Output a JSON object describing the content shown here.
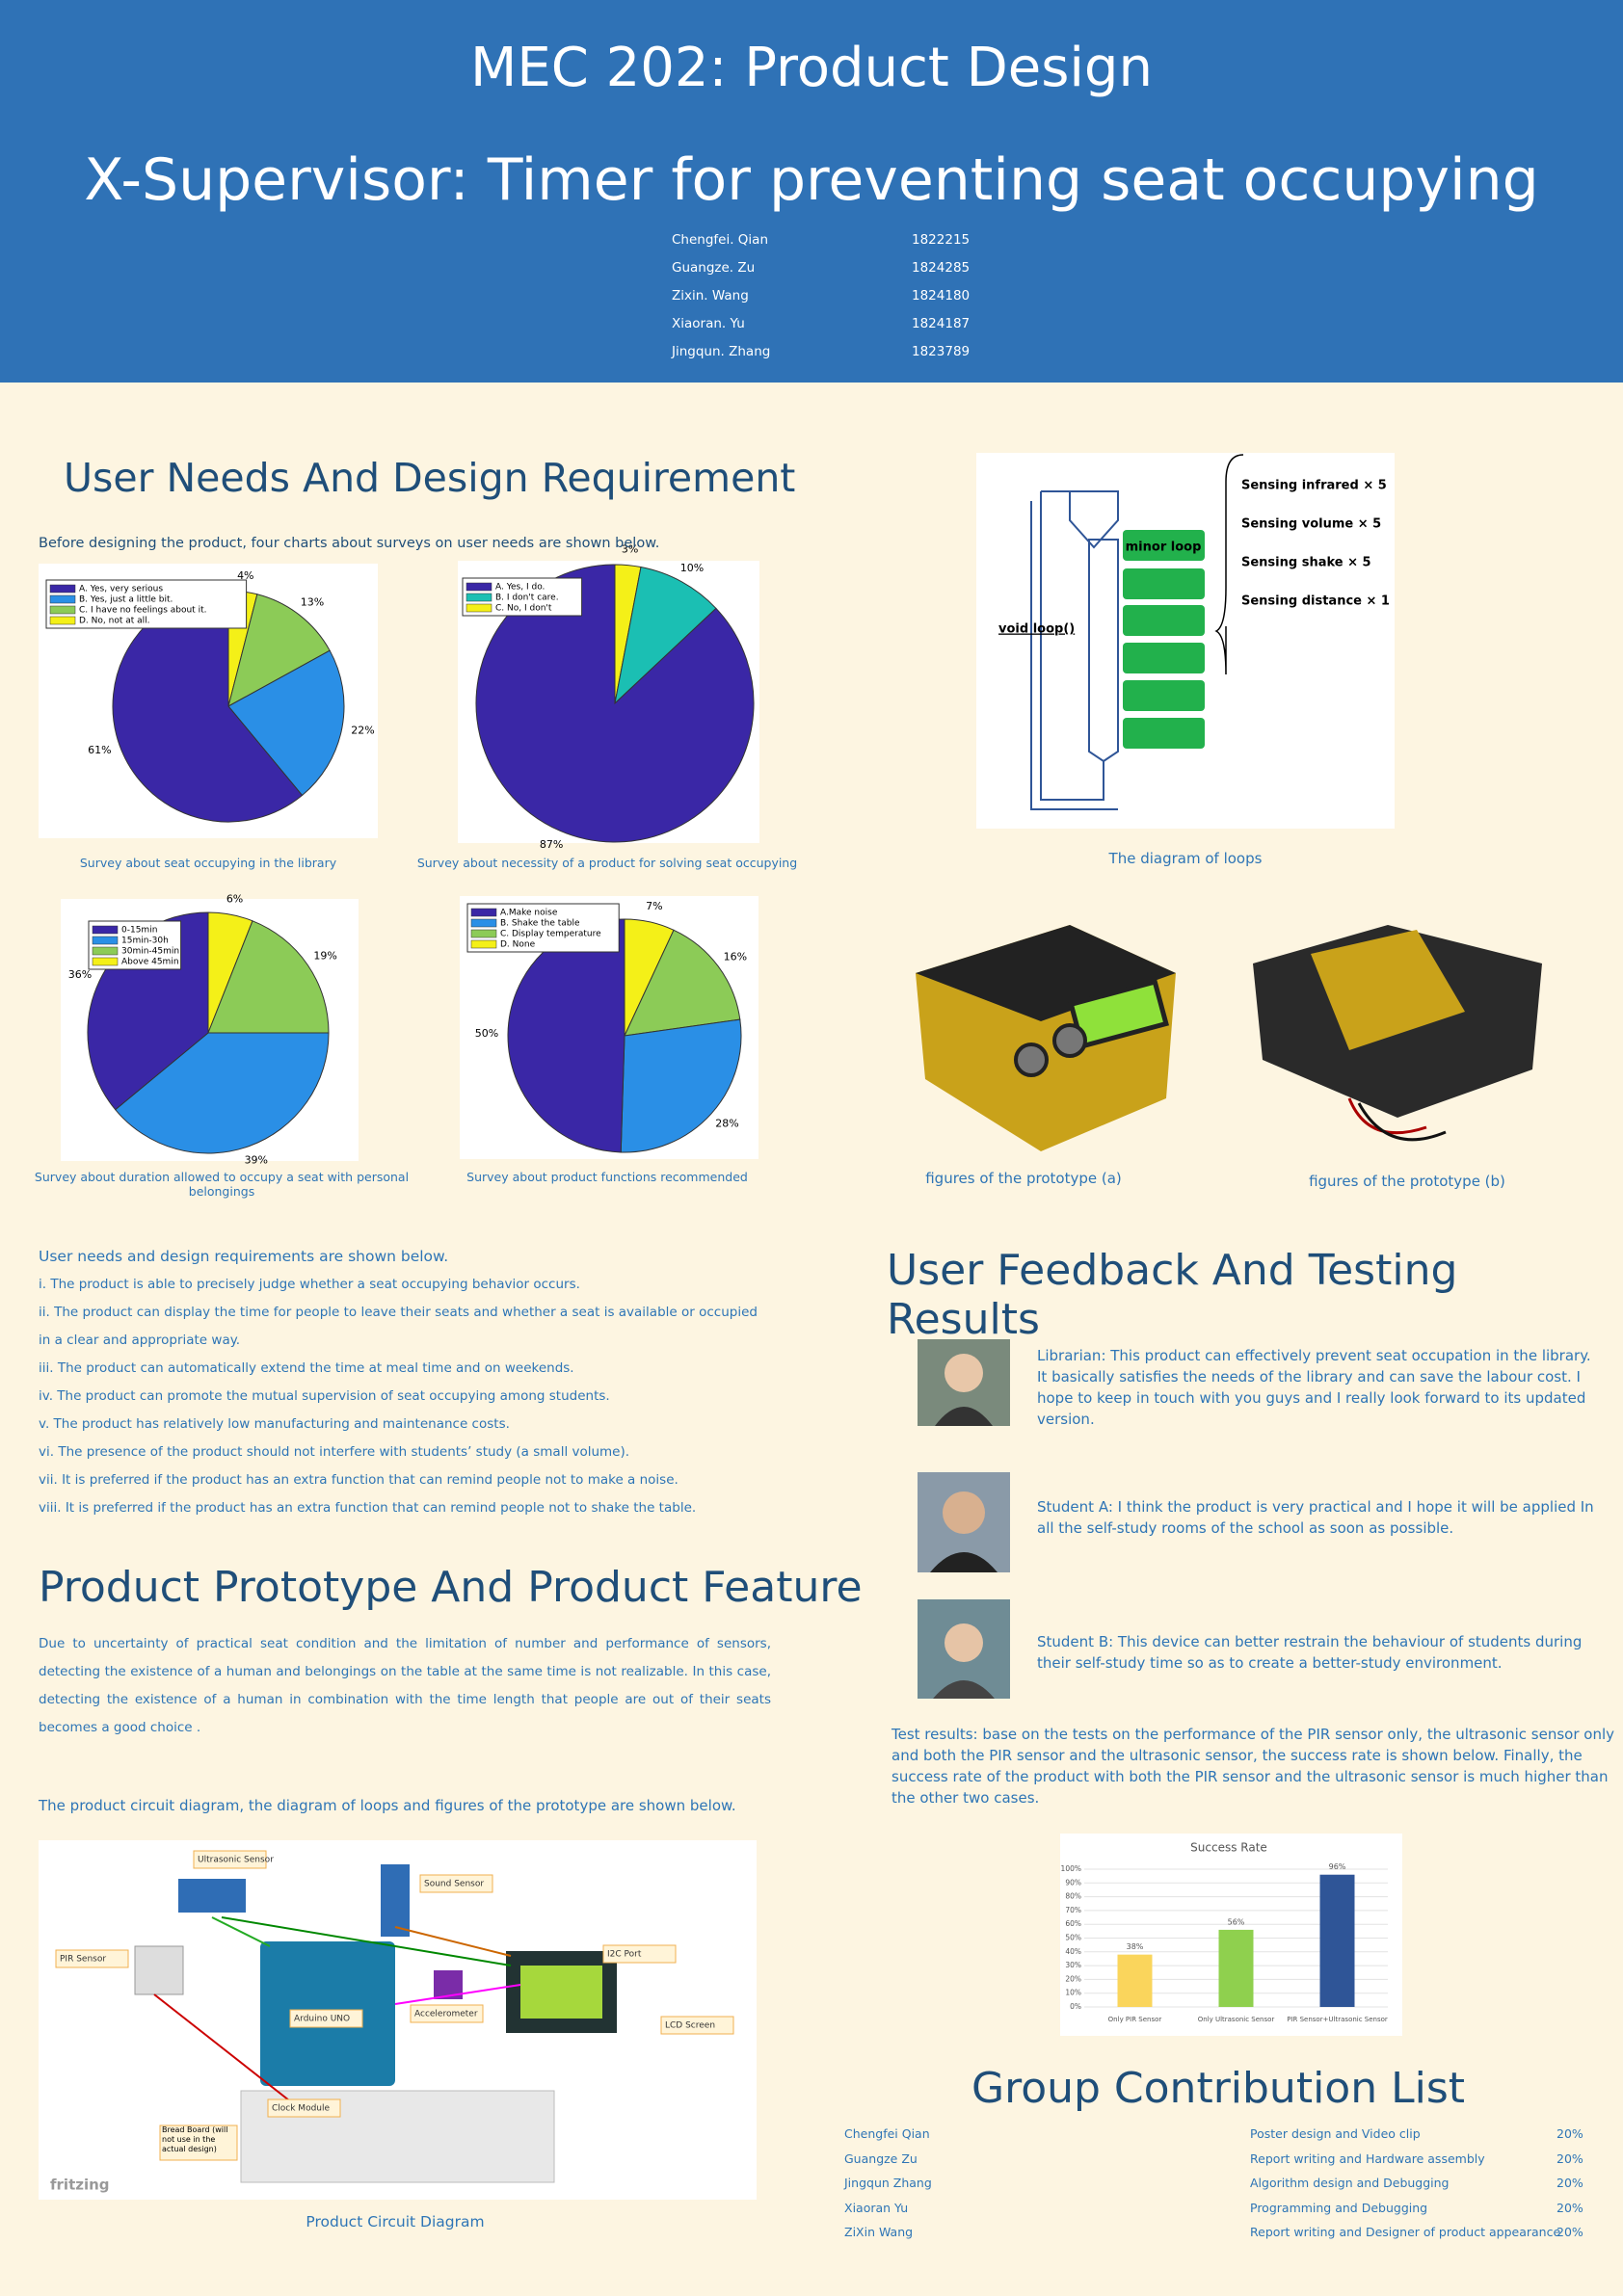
{
  "header": {
    "course": "MEC 202: Product Design",
    "title": "X-Supervisor: Timer for preventing seat occupying",
    "members": [
      {
        "name": "Chengfei. Qian",
        "id": "1822215"
      },
      {
        "name": "Guangze. Zu",
        "id": "1824285"
      },
      {
        "name": "Zixin. Wang",
        "id": "1824180"
      },
      {
        "name": "Xiaoran. Yu",
        "id": "1824187"
      },
      {
        "name": "Jingqun. Zhang",
        "id": "1823789"
      }
    ]
  },
  "needs": {
    "heading": "User Needs And Design Requirement",
    "intro": "Before designing the product, four charts about surveys on user needs are shown below.",
    "lead": "User needs and design requirements are shown below.",
    "items": [
      "i. The product is able to precisely judge whether a seat occupying behavior occurs.",
      "ii. The product can display the time for people to leave their seats and whether a seat is available or occupied in a clear and appropriate way.",
      "iii. The product can automatically extend the time at meal time and on weekends.",
      "iv. The product can promote the mutual supervision of seat occupying among students.",
      "v. The product has relatively low manufacturing and maintenance costs.",
      "vi. The presence of the product should not interfere with students’ study (a small volume).",
      "vii. It is preferred if the product has an extra function that can remind people not to make a noise.",
      "viii. It is preferred if the product has an extra function that can remind people not to shake the table."
    ]
  },
  "chart_data": [
    {
      "type": "pie",
      "caption": "Survey about seat occupying in the library",
      "categories": [
        "A. Yes, very serious",
        "B. Yes, just a little bit.",
        "C. I have no feelings about it.",
        "D. No, not at all."
      ],
      "values": [
        61,
        22,
        13,
        4
      ],
      "value_labels": [
        "61%",
        "22%",
        "13%",
        "4%"
      ],
      "colors": [
        "#3a27a6",
        "#2a8fe6",
        "#8ccb57",
        "#f4f018"
      ]
    },
    {
      "type": "pie",
      "caption": "Survey about necessity of a product for solving seat occupying",
      "categories": [
        "A. Yes, I do.",
        "B. I don't care.",
        "C. No, I don't"
      ],
      "values": [
        87,
        10,
        3
      ],
      "value_labels": [
        "87%",
        "10%",
        "3%"
      ],
      "colors": [
        "#3a27a6",
        "#1bbfb3",
        "#f4f018"
      ]
    },
    {
      "type": "pie",
      "caption": "Survey about duration allowed to occupy a seat with personal belongings",
      "categories": [
        "0-15min",
        "15min-30h",
        "30min-45min",
        "Above 45min"
      ],
      "values": [
        36,
        39,
        19,
        6
      ],
      "value_labels": [
        "36%",
        "39%",
        "19%",
        "6%"
      ],
      "colors": [
        "#3a27a6",
        "#2a8fe6",
        "#8ccb57",
        "#f4f018"
      ]
    },
    {
      "type": "pie",
      "caption": "Survey about product functions recommended",
      "categories": [
        "A.Make noise",
        "B. Shake the table",
        "C. Display temperature",
        "D. None"
      ],
      "values": [
        50,
        28,
        16,
        7
      ],
      "value_labels": [
        "50%",
        "28%",
        "16%",
        "7%"
      ],
      "colors": [
        "#3a27a6",
        "#2a8fe6",
        "#8ccb57",
        "#f4f018"
      ]
    },
    {
      "type": "bar",
      "title": "Success Rate",
      "categories": [
        "Only PIR Sensor",
        "Only Ultrasonic Sensor",
        "PIR Sensor+Ultrasonic Sensor"
      ],
      "values": [
        38,
        56,
        96
      ],
      "value_labels": [
        "38%",
        "56%",
        "96%"
      ],
      "colors": [
        "#fad55c",
        "#8fd04e",
        "#2f5597"
      ],
      "ylim": [
        0,
        100
      ],
      "yticks": [
        {
          "value": 0,
          "label": "0%"
        },
        {
          "value": 10,
          "label": "10%"
        },
        {
          "value": 20,
          "label": "20%"
        },
        {
          "value": 30,
          "label": "30%"
        },
        {
          "value": 40,
          "label": "40%"
        },
        {
          "value": 50,
          "label": "50%"
        },
        {
          "value": 60,
          "label": "60%"
        },
        {
          "value": 70,
          "label": "70%"
        },
        {
          "value": 80,
          "label": "80%"
        },
        {
          "value": 90,
          "label": "90%"
        },
        {
          "value": 100,
          "label": "100%"
        }
      ],
      "grid": true
    }
  ],
  "loop_diagram": {
    "caption": "The diagram of loops",
    "loop": "void loop()",
    "minor": "minor loop",
    "sensing": [
      "Sensing infrared × 5",
      "Sensing volume × 5",
      "Sensing shake × 5",
      "Sensing distance × 1"
    ]
  },
  "prototype_photos": [
    "figures of the prototype (a)",
    "figures of the prototype (b)"
  ],
  "prototype": {
    "heading": "Product Prototype And Product Feature",
    "text": "Due to uncertainty  of practical seat condition and the limitation of  number and performance of sensors, detecting the existence of a human  and  belongings on the table at the same time is not realizable. In this case, detecting the existence of a human  in combination with the time length that people are out of their seats becomes a good choice .",
    "lead": "The product circuit diagram, the diagram of loops and figures of the prototype are shown below.",
    "circuit_caption": "Product Circuit Diagram",
    "circuit_labels": [
      "Ultrasonic Sensor",
      "Sound Sensor",
      "PIR Sensor",
      "I2C Port",
      "Arduino UNO",
      "Accelerometer",
      "LCD Screen",
      "Clock Module",
      "Bread Board (will not use in the actual design)",
      "fritzing"
    ]
  },
  "feedback": {
    "heading": "User Feedback And Testing Results",
    "quotes": [
      "Librarian: This product can effectively prevent  seat occupation in the library. It basically satisfies the needs of the library and can save the labour cost. I hope to keep in touch with you guys and  I really look forward to its updated version.",
      "Student A: I think the product is very practical and I hope it will be applied In all the self-study rooms of the school as soon as possible.",
      "Student B: This device can better restrain the behaviour of students during their self-study time so as to create a better-study environment."
    ],
    "test_results": "Test results: base on the tests on the performance of the PIR sensor only, the ultrasonic sensor only and both the PIR sensor and the ultrasonic sensor, the success rate is shown below. Finally, the success rate of the product with both the PIR sensor and the ultrasonic sensor is much higher than the other two cases."
  },
  "contribution": {
    "heading": "Group Contribution List",
    "rows": [
      [
        "Chengfei Qian",
        "Poster design and Video clip",
        "20%"
      ],
      [
        "Guangze Zu",
        "Report writing and Hardware assembly",
        "20%"
      ],
      [
        "Jingqun Zhang",
        "Algorithm design and Debugging",
        "20%"
      ],
      [
        "Xiaoran Yu",
        "Programming and Debugging",
        "20%"
      ],
      [
        "ZiXin Wang",
        "Report writing and Designer of product appearance",
        "20%"
      ]
    ]
  }
}
